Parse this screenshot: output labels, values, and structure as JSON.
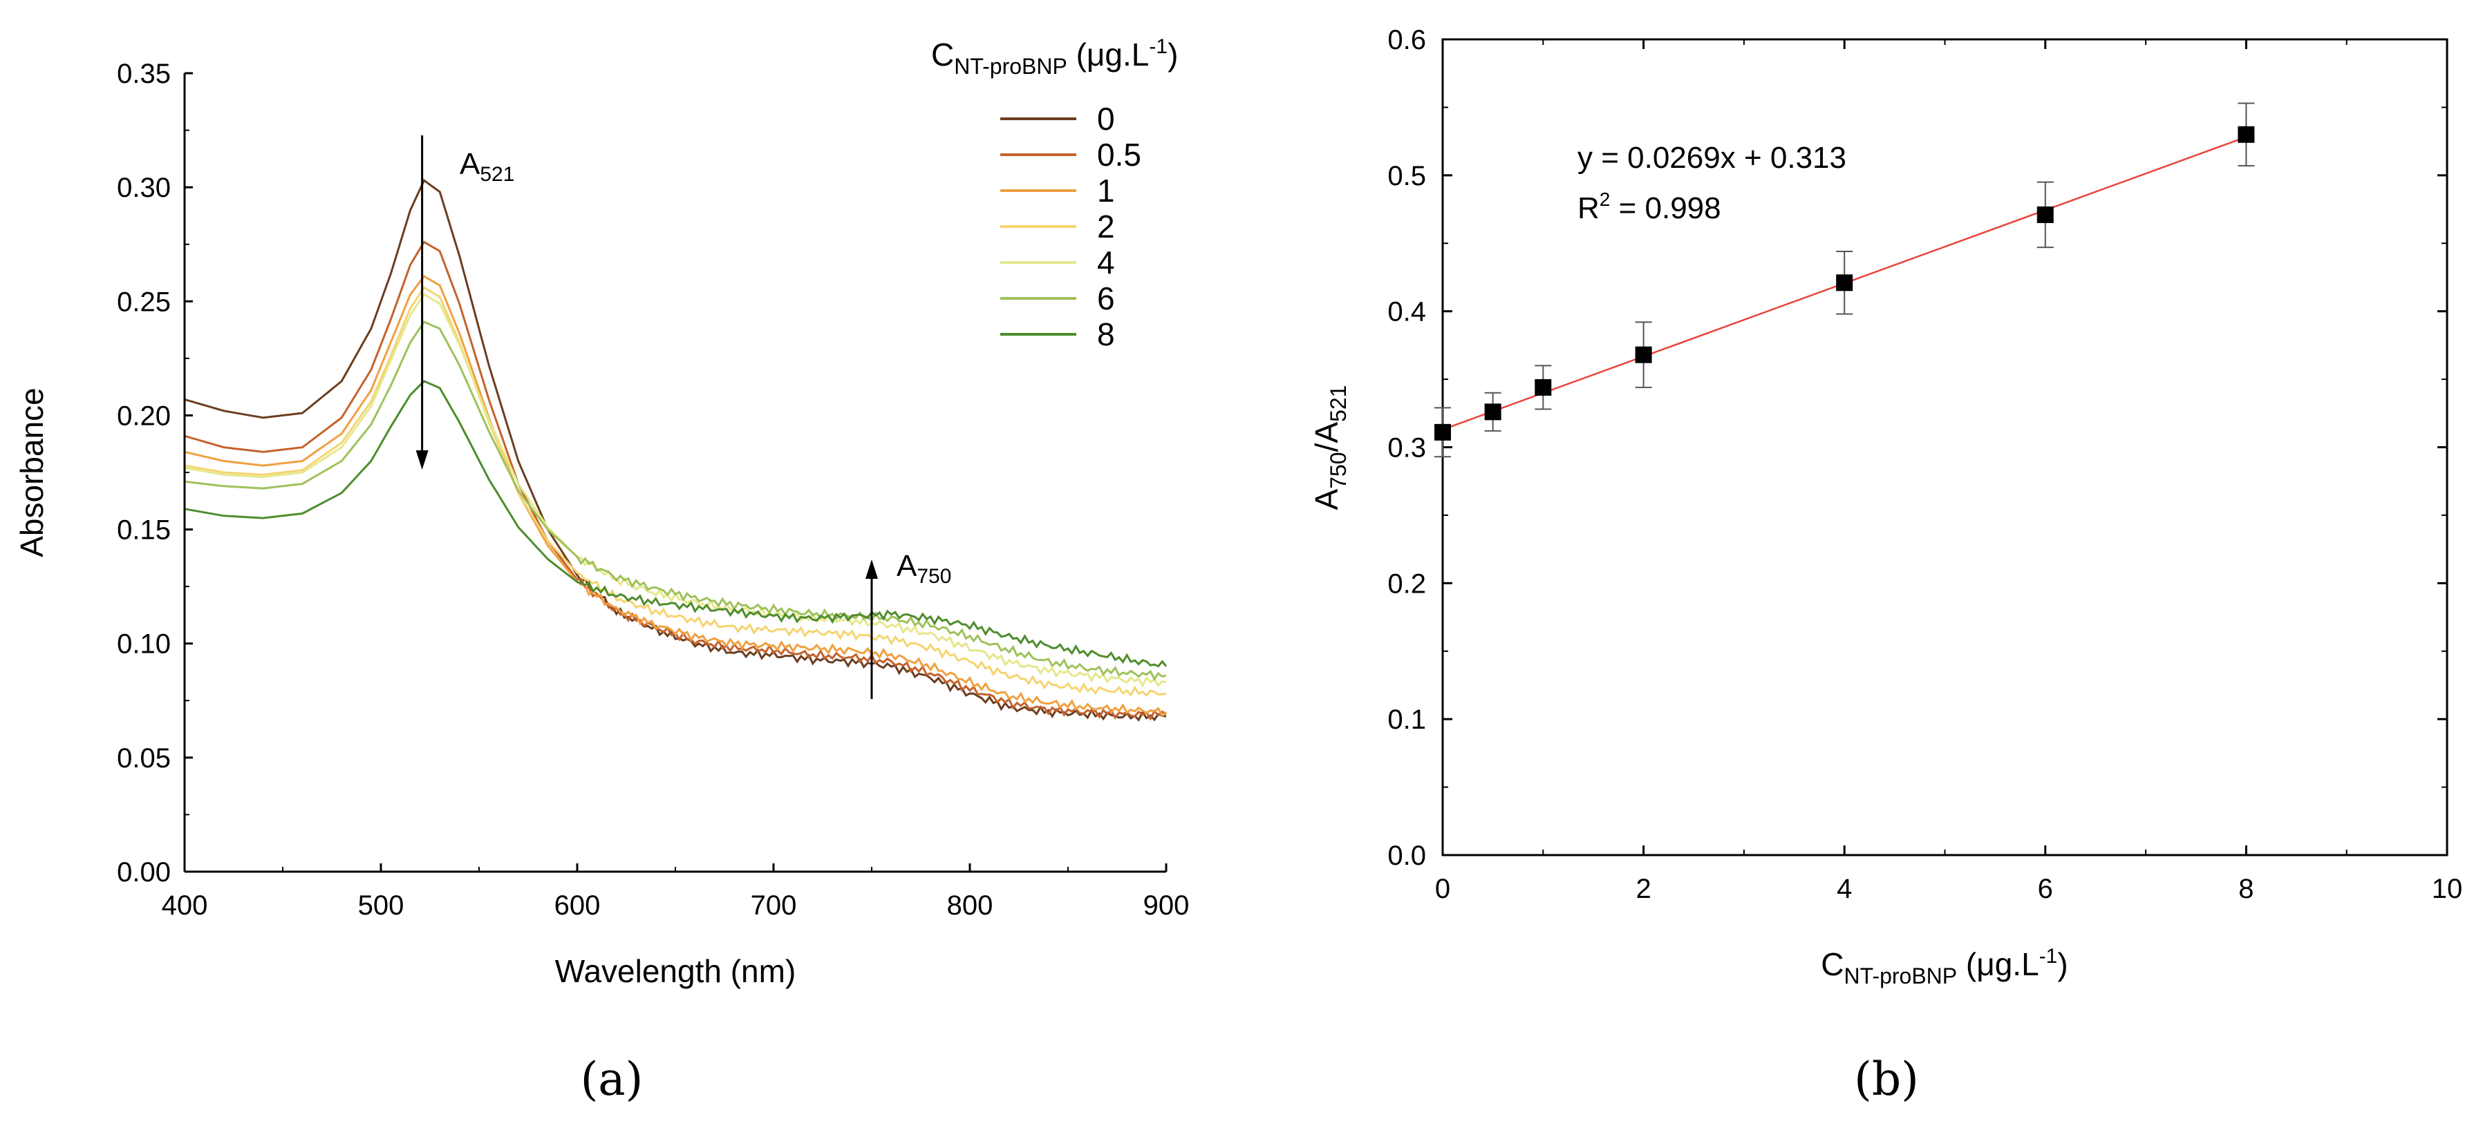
{
  "chart_data": [
    {
      "panel": "(a)",
      "type": "line",
      "xlabel": "Wavelength (nm)",
      "ylabel": "Absorbance",
      "xlim": [
        400,
        900
      ],
      "ylim": [
        0.0,
        0.35
      ],
      "xticks": [
        "400",
        "500",
        "600",
        "700",
        "800",
        "900"
      ],
      "yticks": [
        "0.00",
        "0.05",
        "0.10",
        "0.15",
        "0.20",
        "0.25",
        "0.30",
        "0.35"
      ],
      "grid": false,
      "legend": {
        "title_main": "C",
        "title_sub": "NT-proBNP",
        "title_unit": " (μg.L",
        "title_sup": "-1",
        "title_end": ")",
        "placement": "top-right"
      },
      "annotations": [
        {
          "base": "A",
          "sub": "521",
          "arrow": "down",
          "x": 521
        },
        {
          "base": "A",
          "sub": "750",
          "arrow": "up",
          "x": 750
        }
      ],
      "series": [
        {
          "name": "0",
          "color": "#6b3e1f",
          "points": [
            [
              400,
              0.207
            ],
            [
              420,
              0.202
            ],
            [
              440,
              0.199
            ],
            [
              460,
              0.201
            ],
            [
              480,
              0.215
            ],
            [
              495,
              0.238
            ],
            [
              505,
              0.262
            ],
            [
              515,
              0.29
            ],
            [
              522,
              0.303
            ],
            [
              530,
              0.298
            ],
            [
              540,
              0.27
            ],
            [
              555,
              0.222
            ],
            [
              570,
              0.18
            ],
            [
              585,
              0.15
            ],
            [
              600,
              0.13
            ],
            [
              620,
              0.114
            ],
            [
              640,
              0.106
            ],
            [
              660,
              0.1
            ],
            [
              680,
              0.096
            ],
            [
              700,
              0.095
            ],
            [
              720,
              0.093
            ],
            [
              740,
              0.092
            ],
            [
              760,
              0.09
            ],
            [
              780,
              0.085
            ],
            [
              800,
              0.078
            ],
            [
              820,
              0.072
            ],
            [
              840,
              0.07
            ],
            [
              860,
              0.069
            ],
            [
              880,
              0.068
            ],
            [
              900,
              0.068
            ]
          ]
        },
        {
          "name": "0.5",
          "color": "#c4622d",
          "points": [
            [
              400,
              0.191
            ],
            [
              420,
              0.186
            ],
            [
              440,
              0.184
            ],
            [
              460,
              0.186
            ],
            [
              480,
              0.199
            ],
            [
              495,
              0.22
            ],
            [
              505,
              0.242
            ],
            [
              515,
              0.266
            ],
            [
              522,
              0.276
            ],
            [
              530,
              0.272
            ],
            [
              540,
              0.249
            ],
            [
              555,
              0.207
            ],
            [
              570,
              0.17
            ],
            [
              585,
              0.145
            ],
            [
              600,
              0.128
            ],
            [
              620,
              0.114
            ],
            [
              640,
              0.107
            ],
            [
              660,
              0.101
            ],
            [
              680,
              0.098
            ],
            [
              700,
              0.097
            ],
            [
              720,
              0.095
            ],
            [
              740,
              0.094
            ],
            [
              760,
              0.092
            ],
            [
              780,
              0.087
            ],
            [
              800,
              0.08
            ],
            [
              820,
              0.074
            ],
            [
              840,
              0.071
            ],
            [
              860,
              0.07
            ],
            [
              880,
              0.069
            ],
            [
              900,
              0.069
            ]
          ]
        },
        {
          "name": "1",
          "color": "#f0a040",
          "points": [
            [
              400,
              0.184
            ],
            [
              420,
              0.18
            ],
            [
              440,
              0.178
            ],
            [
              460,
              0.18
            ],
            [
              480,
              0.192
            ],
            [
              495,
              0.211
            ],
            [
              505,
              0.232
            ],
            [
              515,
              0.253
            ],
            [
              522,
              0.261
            ],
            [
              530,
              0.257
            ],
            [
              540,
              0.236
            ],
            [
              555,
              0.199
            ],
            [
              570,
              0.166
            ],
            [
              585,
              0.143
            ],
            [
              600,
              0.127
            ],
            [
              620,
              0.115
            ],
            [
              640,
              0.108
            ],
            [
              660,
              0.103
            ],
            [
              680,
              0.1
            ],
            [
              700,
              0.099
            ],
            [
              720,
              0.098
            ],
            [
              740,
              0.097
            ],
            [
              760,
              0.095
            ],
            [
              780,
              0.09
            ],
            [
              800,
              0.083
            ],
            [
              820,
              0.077
            ],
            [
              840,
              0.074
            ],
            [
              860,
              0.072
            ],
            [
              880,
              0.071
            ],
            [
              900,
              0.07
            ]
          ]
        },
        {
          "name": "2",
          "color": "#f5d470",
          "points": [
            [
              400,
              0.178
            ],
            [
              420,
              0.175
            ],
            [
              440,
              0.174
            ],
            [
              460,
              0.176
            ],
            [
              480,
              0.188
            ],
            [
              495,
              0.206
            ],
            [
              505,
              0.226
            ],
            [
              515,
              0.247
            ],
            [
              522,
              0.256
            ],
            [
              530,
              0.252
            ],
            [
              540,
              0.232
            ],
            [
              555,
              0.197
            ],
            [
              570,
              0.166
            ],
            [
              585,
              0.145
            ],
            [
              600,
              0.131
            ],
            [
              620,
              0.12
            ],
            [
              640,
              0.114
            ],
            [
              660,
              0.11
            ],
            [
              680,
              0.107
            ],
            [
              700,
              0.106
            ],
            [
              720,
              0.105
            ],
            [
              740,
              0.104
            ],
            [
              760,
              0.102
            ],
            [
              780,
              0.098
            ],
            [
              800,
              0.092
            ],
            [
              820,
              0.086
            ],
            [
              840,
              0.082
            ],
            [
              860,
              0.08
            ],
            [
              880,
              0.079
            ],
            [
              900,
              0.078
            ]
          ]
        },
        {
          "name": "4",
          "color": "#e6e88c",
          "points": [
            [
              400,
              0.177
            ],
            [
              420,
              0.174
            ],
            [
              440,
              0.173
            ],
            [
              460,
              0.175
            ],
            [
              480,
              0.186
            ],
            [
              495,
              0.204
            ],
            [
              505,
              0.224
            ],
            [
              515,
              0.244
            ],
            [
              522,
              0.253
            ],
            [
              530,
              0.249
            ],
            [
              540,
              0.231
            ],
            [
              555,
              0.198
            ],
            [
              570,
              0.17
            ],
            [
              585,
              0.151
            ],
            [
              600,
              0.138
            ],
            [
              620,
              0.128
            ],
            [
              640,
              0.122
            ],
            [
              660,
              0.118
            ],
            [
              680,
              0.115
            ],
            [
              700,
              0.113
            ],
            [
              720,
              0.111
            ],
            [
              740,
              0.11
            ],
            [
              760,
              0.108
            ],
            [
              780,
              0.104
            ],
            [
              800,
              0.098
            ],
            [
              820,
              0.092
            ],
            [
              840,
              0.088
            ],
            [
              860,
              0.086
            ],
            [
              880,
              0.084
            ],
            [
              900,
              0.083
            ]
          ]
        },
        {
          "name": "6",
          "color": "#9ec25a",
          "points": [
            [
              400,
              0.171
            ],
            [
              420,
              0.169
            ],
            [
              440,
              0.168
            ],
            [
              460,
              0.17
            ],
            [
              480,
              0.18
            ],
            [
              495,
              0.196
            ],
            [
              505,
              0.213
            ],
            [
              515,
              0.232
            ],
            [
              522,
              0.241
            ],
            [
              530,
              0.238
            ],
            [
              540,
              0.222
            ],
            [
              555,
              0.193
            ],
            [
              570,
              0.167
            ],
            [
              585,
              0.15
            ],
            [
              600,
              0.138
            ],
            [
              620,
              0.129
            ],
            [
              640,
              0.124
            ],
            [
              660,
              0.12
            ],
            [
              680,
              0.117
            ],
            [
              700,
              0.115
            ],
            [
              720,
              0.113
            ],
            [
              740,
              0.112
            ],
            [
              760,
              0.111
            ],
            [
              780,
              0.108
            ],
            [
              800,
              0.103
            ],
            [
              820,
              0.097
            ],
            [
              840,
              0.092
            ],
            [
              860,
              0.089
            ],
            [
              880,
              0.087
            ],
            [
              900,
              0.086
            ]
          ]
        },
        {
          "name": "8",
          "color": "#4e8c2c",
          "points": [
            [
              400,
              0.159
            ],
            [
              420,
              0.156
            ],
            [
              440,
              0.155
            ],
            [
              460,
              0.157
            ],
            [
              480,
              0.166
            ],
            [
              495,
              0.18
            ],
            [
              505,
              0.195
            ],
            [
              515,
              0.209
            ],
            [
              522,
              0.215
            ],
            [
              530,
              0.212
            ],
            [
              540,
              0.197
            ],
            [
              555,
              0.172
            ],
            [
              570,
              0.151
            ],
            [
              585,
              0.137
            ],
            [
              600,
              0.127
            ],
            [
              620,
              0.121
            ],
            [
              640,
              0.118
            ],
            [
              660,
              0.116
            ],
            [
              680,
              0.114
            ],
            [
              700,
              0.112
            ],
            [
              720,
              0.111
            ],
            [
              740,
              0.112
            ],
            [
              760,
              0.113
            ],
            [
              780,
              0.111
            ],
            [
              800,
              0.108
            ],
            [
              820,
              0.103
            ],
            [
              840,
              0.099
            ],
            [
              860,
              0.096
            ],
            [
              880,
              0.093
            ],
            [
              900,
              0.09
            ]
          ]
        }
      ]
    },
    {
      "panel": "(b)",
      "type": "scatter",
      "xlabel": {
        "main": "C",
        "sub": "NT-proBNP",
        "unit": " (μg.L",
        "sup": "-1",
        "end": ")"
      },
      "ylabel": {
        "a": "A",
        "asub": "750",
        "slash": "/A",
        "bsub": "521"
      },
      "xlim": [
        0,
        10
      ],
      "ylim": [
        0.0,
        0.6
      ],
      "xticks": [
        "0",
        "2",
        "4",
        "6",
        "8",
        "10"
      ],
      "yticks": [
        "0.0",
        "0.1",
        "0.2",
        "0.3",
        "0.4",
        "0.5",
        "0.6"
      ],
      "grid": false,
      "equation": "y = 0.0269x + 0.313",
      "r2_label": "R",
      "r2_sup": "2",
      "r2_value": " = 0.998",
      "fit": {
        "slope": 0.0269,
        "intercept": 0.313,
        "color": "#e8443a"
      },
      "marker_color": "#000000",
      "points": [
        {
          "x": 0,
          "y": 0.311,
          "err": 0.018
        },
        {
          "x": 0.5,
          "y": 0.326,
          "err": 0.014
        },
        {
          "x": 1,
          "y": 0.344,
          "err": 0.016
        },
        {
          "x": 2,
          "y": 0.368,
          "err": 0.024
        },
        {
          "x": 4,
          "y": 0.421,
          "err": 0.023
        },
        {
          "x": 6,
          "y": 0.471,
          "err": 0.024
        },
        {
          "x": 8,
          "y": 0.53,
          "err": 0.023
        }
      ]
    }
  ]
}
